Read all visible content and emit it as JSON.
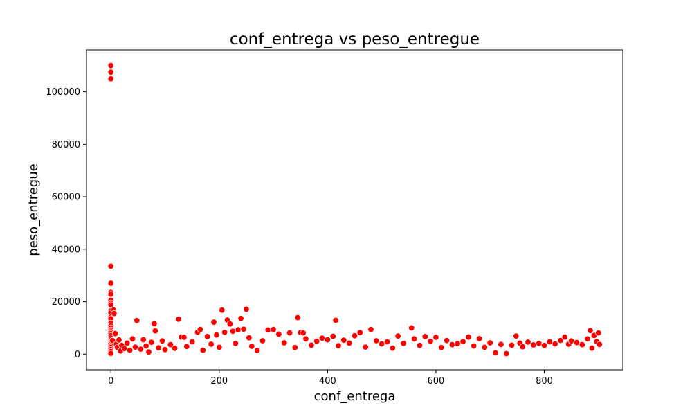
{
  "chart_data": {
    "type": "scatter",
    "title": "conf_entrega vs peso_entregue",
    "xlabel": "conf_entrega",
    "ylabel": "peso_entregue",
    "xlim": [
      -45,
      945
    ],
    "ylim": [
      -6000,
      116000
    ],
    "xticks": [
      0,
      200,
      400,
      600,
      800
    ],
    "yticks": [
      0,
      20000,
      40000,
      60000,
      80000,
      100000
    ],
    "grid": false,
    "legend": "none",
    "marker_color": "#ff0000",
    "marker_edge_color": "#ffffff",
    "series": [
      {
        "points": [
          [
            0,
            110000
          ],
          [
            0,
            107500
          ],
          [
            0,
            105000
          ],
          [
            0,
            33500
          ],
          [
            0,
            27000
          ],
          [
            0,
            23500
          ],
          [
            0,
            22800
          ],
          [
            0,
            20500
          ],
          [
            0,
            19500
          ],
          [
            0,
            18800
          ],
          [
            0,
            16500
          ],
          [
            0,
            15800
          ],
          [
            0,
            14200
          ],
          [
            0,
            13500
          ],
          [
            0,
            11800
          ],
          [
            0,
            10800
          ],
          [
            0,
            10000
          ],
          [
            0,
            9200
          ],
          [
            0,
            8500
          ],
          [
            0,
            7800
          ],
          [
            0,
            7000
          ],
          [
            0,
            6200
          ],
          [
            0,
            5500
          ],
          [
            0,
            4800
          ],
          [
            0,
            4000
          ],
          [
            0,
            3200
          ],
          [
            0,
            2500
          ],
          [
            0,
            1800
          ],
          [
            0,
            1000
          ],
          [
            0,
            300
          ],
          [
            3,
            5200
          ],
          [
            5,
            16800
          ],
          [
            6,
            15500
          ],
          [
            8,
            7800
          ],
          [
            10,
            3800
          ],
          [
            12,
            2600
          ],
          [
            15,
            5400
          ],
          [
            18,
            1200
          ],
          [
            20,
            3300
          ],
          [
            25,
            2100
          ],
          [
            30,
            4200
          ],
          [
            35,
            1500
          ],
          [
            40,
            5800
          ],
          [
            45,
            2700
          ],
          [
            48,
            12800
          ],
          [
            55,
            1900
          ],
          [
            60,
            5500
          ],
          [
            65,
            3100
          ],
          [
            70,
            800
          ],
          [
            75,
            4500
          ],
          [
            80,
            11600
          ],
          [
            82,
            8900
          ],
          [
            88,
            2400
          ],
          [
            95,
            5000
          ],
          [
            100,
            1700
          ],
          [
            110,
            3600
          ],
          [
            118,
            2200
          ],
          [
            125,
            13300
          ],
          [
            130,
            6500
          ],
          [
            135,
            6400
          ],
          [
            140,
            2900
          ],
          [
            150,
            4700
          ],
          [
            160,
            8300
          ],
          [
            165,
            9400
          ],
          [
            170,
            1500
          ],
          [
            178,
            6700
          ],
          [
            185,
            3800
          ],
          [
            190,
            12200
          ],
          [
            195,
            7300
          ],
          [
            200,
            2600
          ],
          [
            205,
            16800
          ],
          [
            210,
            8300
          ],
          [
            215,
            13000
          ],
          [
            220,
            11500
          ],
          [
            225,
            8700
          ],
          [
            230,
            4100
          ],
          [
            235,
            9300
          ],
          [
            240,
            13600
          ],
          [
            245,
            9500
          ],
          [
            250,
            17100
          ],
          [
            255,
            6200
          ],
          [
            260,
            3000
          ],
          [
            270,
            1400
          ],
          [
            280,
            5100
          ],
          [
            290,
            9200
          ],
          [
            300,
            9400
          ],
          [
            310,
            7600
          ],
          [
            320,
            4300
          ],
          [
            330,
            8100
          ],
          [
            340,
            2500
          ],
          [
            345,
            13900
          ],
          [
            350,
            8200
          ],
          [
            355,
            8100
          ],
          [
            360,
            5800
          ],
          [
            370,
            3400
          ],
          [
            380,
            4900
          ],
          [
            390,
            6100
          ],
          [
            400,
            5500
          ],
          [
            410,
            6800
          ],
          [
            415,
            12900
          ],
          [
            420,
            3200
          ],
          [
            430,
            5300
          ],
          [
            440,
            4200
          ],
          [
            450,
            7000
          ],
          [
            460,
            8200
          ],
          [
            470,
            2700
          ],
          [
            480,
            9400
          ],
          [
            490,
            5100
          ],
          [
            500,
            3900
          ],
          [
            510,
            4700
          ],
          [
            520,
            2300
          ],
          [
            530,
            6900
          ],
          [
            540,
            4100
          ],
          [
            555,
            10000
          ],
          [
            560,
            5800
          ],
          [
            570,
            3300
          ],
          [
            580,
            6700
          ],
          [
            590,
            4900
          ],
          [
            600,
            6400
          ],
          [
            610,
            2500
          ],
          [
            620,
            5200
          ],
          [
            630,
            3600
          ],
          [
            640,
            4000
          ],
          [
            650,
            4800
          ],
          [
            660,
            6500
          ],
          [
            670,
            3100
          ],
          [
            680,
            5900
          ],
          [
            690,
            2600
          ],
          [
            700,
            4300
          ],
          [
            710,
            500
          ],
          [
            720,
            3700
          ],
          [
            730,
            200
          ],
          [
            740,
            3400
          ],
          [
            748,
            6900
          ],
          [
            755,
            4200
          ],
          [
            760,
            2800
          ],
          [
            770,
            4600
          ],
          [
            780,
            3500
          ],
          [
            790,
            4100
          ],
          [
            800,
            3300
          ],
          [
            810,
            4700
          ],
          [
            820,
            3900
          ],
          [
            830,
            5200
          ],
          [
            838,
            6500
          ],
          [
            845,
            3800
          ],
          [
            850,
            5000
          ],
          [
            860,
            4400
          ],
          [
            870,
            3600
          ],
          [
            880,
            5800
          ],
          [
            885,
            9000
          ],
          [
            888,
            2300
          ],
          [
            892,
            7100
          ],
          [
            897,
            4800
          ],
          [
            900,
            8100
          ],
          [
            902,
            3700
          ]
        ]
      }
    ]
  }
}
